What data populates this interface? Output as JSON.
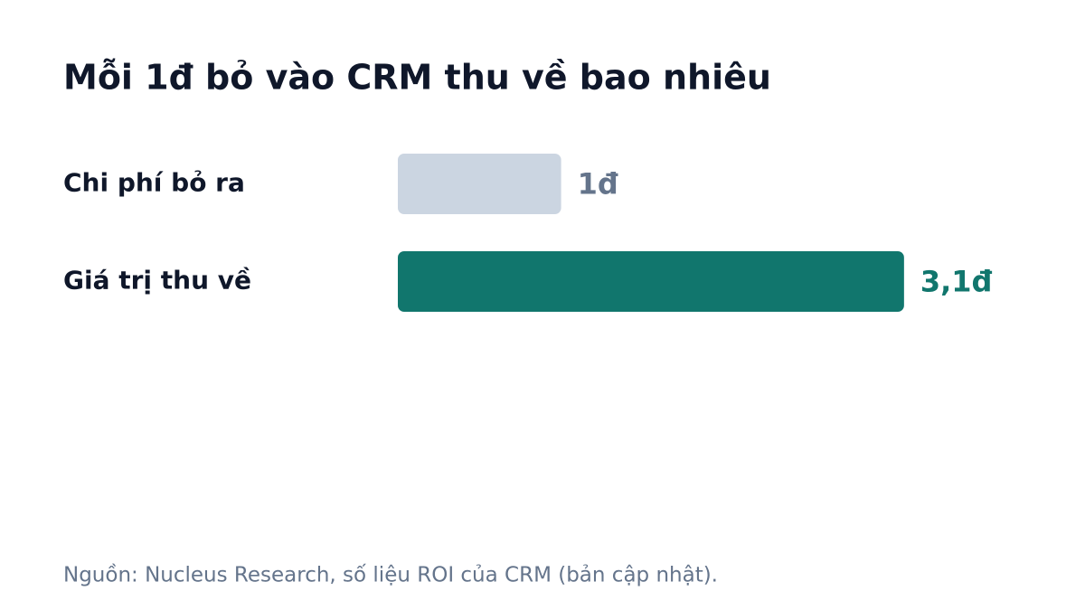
{
  "chart_data": {
    "type": "hbar",
    "title": "Mỗi 1đ bỏ vào CRM thu về bao nhiêu",
    "categories": [
      "Chi phí bỏ ra",
      "Giá trị thu về"
    ],
    "values": [
      1,
      3.1
    ],
    "value_labels": [
      "1đ",
      "3,1đ"
    ],
    "colors": [
      "#cbd5e1",
      "#11766d"
    ],
    "value_label_colors": [
      "#64748b",
      "#11766d"
    ],
    "source": "Nguồn: Nucleus Research, số liệu ROI của CRM (bản cập nhật)."
  }
}
